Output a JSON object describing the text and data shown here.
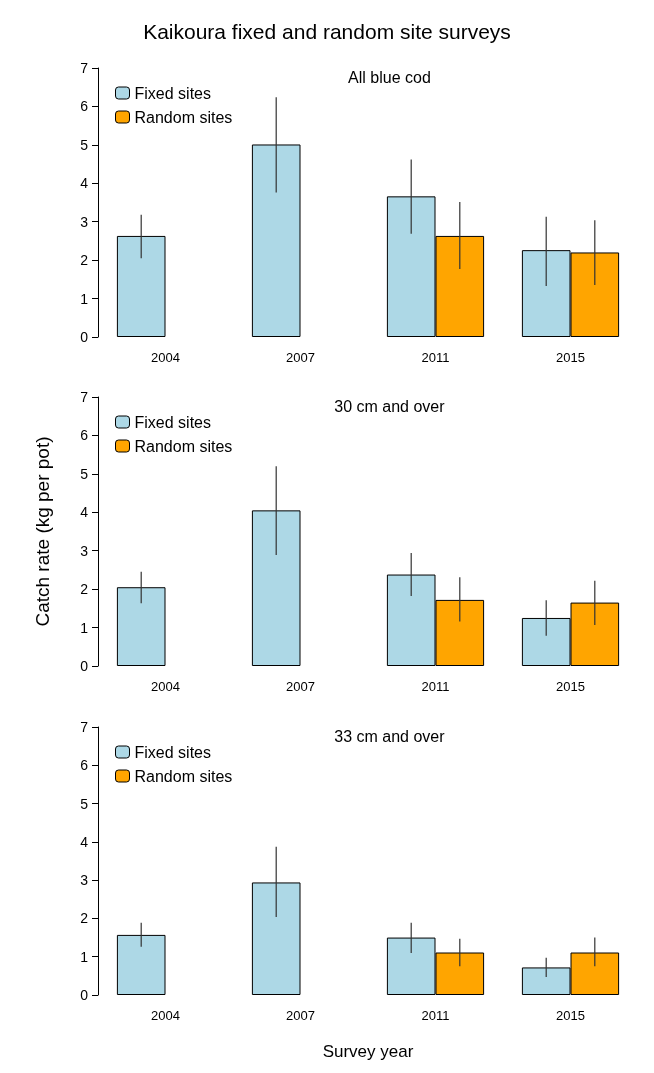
{
  "chart_data": [
    {
      "type": "bar",
      "title": "Kaikoura fixed and random site surveys",
      "subtitle": "All blue cod",
      "categories": [
        "2004",
        "2007",
        "2011",
        "2015"
      ],
      "ylim": [
        0,
        7
      ],
      "yticks": [
        0,
        1,
        2,
        3,
        4,
        5,
        6,
        7
      ],
      "grid": false,
      "legend": "top left",
      "series": [
        {
          "name": "Fixed sites",
          "color": "#add8e6",
          "values": [
            2.63,
            5.01,
            3.66,
            2.26
          ],
          "errors": [
            [
              2.05,
              3.18
            ],
            [
              3.76,
              6.24
            ],
            [
              2.69,
              4.62
            ],
            [
              1.33,
              3.13
            ]
          ]
        },
        {
          "name": "Random sites",
          "color": "#ffa500",
          "values": [
            null,
            null,
            2.63,
            2.2
          ],
          "errors": [
            null,
            null,
            [
              1.77,
              3.51
            ],
            [
              1.35,
              3.04
            ]
          ]
        }
      ]
    },
    {
      "type": "bar",
      "subtitle": "30 cm and over",
      "ylabel": "Catch rate (kg per pot)",
      "categories": [
        "2004",
        "2007",
        "2011",
        "2015"
      ],
      "ylim": [
        0,
        7
      ],
      "yticks": [
        0,
        1,
        2,
        3,
        4,
        5,
        6,
        7
      ],
      "grid": false,
      "legend": "top left",
      "series": [
        {
          "name": "Fixed sites",
          "color": "#add8e6",
          "values": [
            2.05,
            4.05,
            2.38,
            1.25
          ],
          "errors": [
            [
              1.63,
              2.45
            ],
            [
              2.89,
              5.2
            ],
            [
              1.82,
              2.94
            ],
            [
              0.79,
              1.71
            ]
          ]
        },
        {
          "name": "Random sites",
          "color": "#ffa500",
          "values": [
            null,
            null,
            1.72,
            1.65
          ],
          "errors": [
            null,
            null,
            [
              1.16,
              2.31
            ],
            [
              1.07,
              2.22
            ]
          ]
        }
      ]
    },
    {
      "type": "bar",
      "subtitle": "33 cm and over",
      "xlabel": "Survey year",
      "categories": [
        "2004",
        "2007",
        "2011",
        "2015"
      ],
      "ylim": [
        0,
        7
      ],
      "yticks": [
        0,
        1,
        2,
        3,
        4,
        5,
        6,
        7
      ],
      "grid": false,
      "legend": "top left",
      "series": [
        {
          "name": "Fixed sites",
          "color": "#add8e6",
          "values": [
            1.57,
            2.94,
            1.5,
            0.72
          ],
          "errors": [
            [
              1.26,
              1.89
            ],
            [
              2.04,
              3.87
            ],
            [
              1.1,
              1.89
            ],
            [
              0.47,
              0.97
            ]
          ]
        },
        {
          "name": "Random sites",
          "color": "#ffa500",
          "values": [
            null,
            null,
            1.11,
            1.11
          ],
          "errors": [
            null,
            null,
            [
              0.75,
              1.47
            ],
            [
              0.75,
              1.5
            ]
          ]
        }
      ]
    }
  ]
}
